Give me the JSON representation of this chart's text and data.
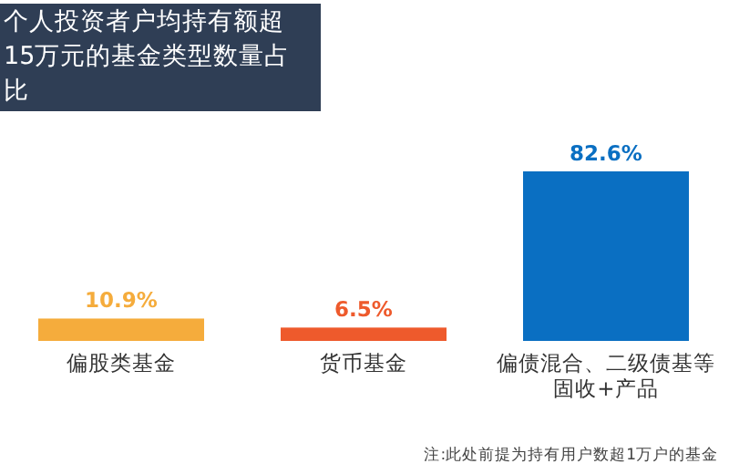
{
  "chart_data": {
    "type": "bar",
    "title": "个人投资者户均持有额超15万元的基金类型数量占比",
    "categories": [
      "偏股类基金",
      "货币基金",
      "偏债混合、二级债基等固收+产品"
    ],
    "values": [
      10.9,
      6.5,
      82.6
    ],
    "colors": [
      "#f5ac3c",
      "#ee5a2c",
      "#0a6fc2"
    ],
    "value_labels": [
      "10.9%",
      "6.5%",
      "82.6%"
    ],
    "relative": false,
    "annotations": [
      "注:此处前提为持有用户数超1万户的基金"
    ]
  }
}
